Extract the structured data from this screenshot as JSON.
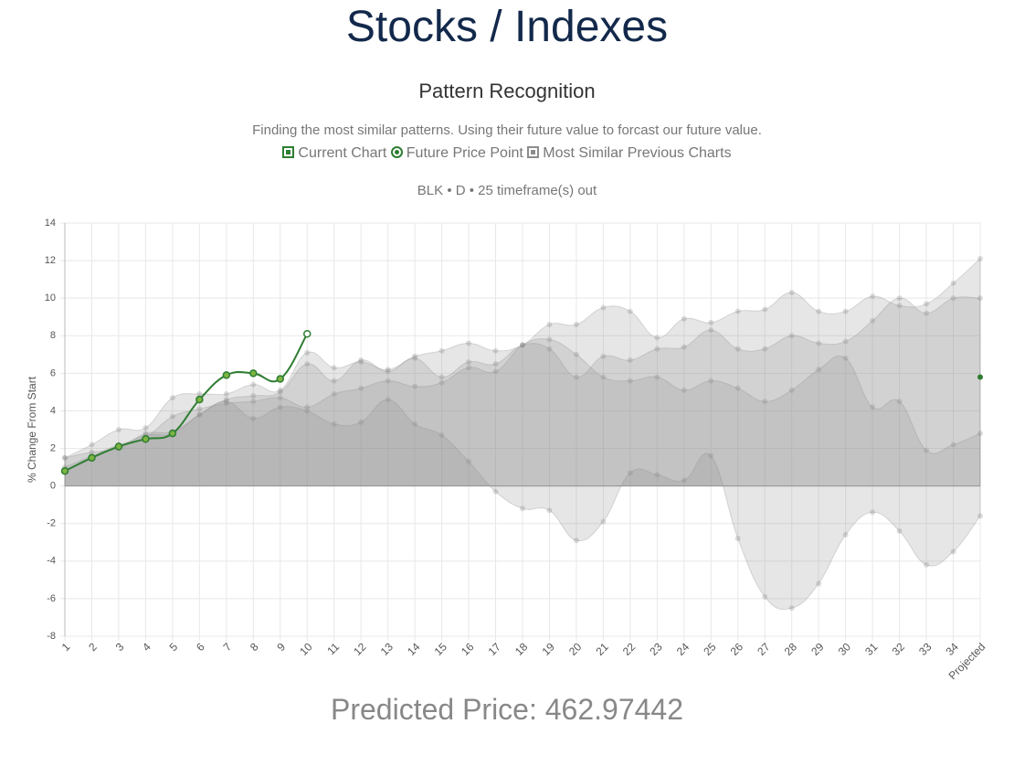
{
  "page": {
    "title": "Stocks / Indexes",
    "subtitle": "Pattern Recognition",
    "description": "Finding the most similar patterns. Using their future value to forcast our future value.",
    "caption": "BLK • D • 25 timeframe(s) out",
    "prediction": "Predicted Price: 462.97442"
  },
  "chart_data": {
    "type": "line",
    "y_label": "% Change From Start",
    "categories": [
      "1",
      "2",
      "3",
      "4",
      "5",
      "6",
      "7",
      "8",
      "9",
      "10",
      "11",
      "12",
      "13",
      "14",
      "15",
      "16",
      "17",
      "18",
      "19",
      "20",
      "21",
      "22",
      "23",
      "24",
      "25",
      "26",
      "27",
      "28",
      "29",
      "30",
      "31",
      "32",
      "33",
      "34",
      "Projected"
    ],
    "ylim": [
      -8,
      14
    ],
    "yticks": [
      -8,
      -6,
      -4,
      -2,
      0,
      2,
      4,
      6,
      8,
      10,
      12,
      14
    ],
    "grid": true,
    "series": [
      {
        "name": "Current Chart",
        "color": "#2e7d32",
        "values": [
          0.8,
          1.5,
          2.1,
          2.5,
          2.8,
          4.6,
          5.9,
          6.0,
          5.7,
          8.1,
          null,
          null,
          null,
          null,
          null,
          null,
          null,
          null,
          null,
          null,
          null,
          null,
          null,
          null,
          null,
          null,
          null,
          null,
          null,
          null,
          null,
          null,
          null,
          null,
          null
        ]
      },
      {
        "name": "Future Price Point",
        "color": "#2e7d32",
        "values": [
          null,
          null,
          null,
          null,
          null,
          null,
          null,
          null,
          null,
          null,
          null,
          null,
          null,
          null,
          null,
          null,
          null,
          null,
          null,
          null,
          null,
          null,
          null,
          null,
          null,
          null,
          null,
          null,
          null,
          null,
          null,
          null,
          null,
          null,
          5.8
        ]
      }
    ],
    "similar_charts": {
      "name": "Most Similar Previous Charts",
      "color": "#8c8c8c",
      "series": [
        {
          "values": [
            1.5,
            2.2,
            3.0,
            3.1,
            4.7,
            4.9,
            4.9,
            5.4,
            5.1,
            7.1,
            6.3,
            6.6,
            6.2,
            6.9,
            7.2,
            7.6,
            7.2,
            7.5,
            8.6,
            8.6,
            9.5,
            9.3,
            7.9,
            8.9,
            8.7,
            9.3,
            9.4,
            10.3,
            9.3,
            9.3,
            10.1,
            9.6,
            9.7,
            10.8,
            12.1
          ]
        },
        {
          "values": [
            1.5,
            1.8,
            2.0,
            2.8,
            2.9,
            3.8,
            4.6,
            4.8,
            5.0,
            6.5,
            5.6,
            6.7,
            6.1,
            6.8,
            5.8,
            6.6,
            6.5,
            7.5,
            7.3,
            5.8,
            6.9,
            6.7,
            7.3,
            7.4,
            8.3,
            7.3,
            7.3,
            8.0,
            7.6,
            7.7,
            8.8,
            10.0,
            9.2,
            10.0,
            10.0
          ]
        },
        {
          "values": [
            1.0,
            1.6,
            2.2,
            2.6,
            3.7,
            4.1,
            4.4,
            4.5,
            4.7,
            4.2,
            4.9,
            5.2,
            5.6,
            5.3,
            5.5,
            6.3,
            6.1,
            7.5,
            7.8,
            7.0,
            5.8,
            5.6,
            5.8,
            5.1,
            5.6,
            5.2,
            4.5,
            5.1,
            6.2,
            6.8,
            4.2,
            4.5,
            1.9,
            2.2,
            2.8
          ]
        },
        {
          "values": [
            0.8,
            1.5,
            2.1,
            2.7,
            2.8,
            3.8,
            4.5,
            3.6,
            4.2,
            4.0,
            3.3,
            3.4,
            4.6,
            3.3,
            2.7,
            1.3,
            -0.3,
            -1.2,
            -1.3,
            -2.9,
            -1.9,
            0.7,
            0.6,
            0.3,
            1.6,
            -2.8,
            -5.9,
            -6.5,
            -5.2,
            -2.6,
            -1.4,
            -2.4,
            -4.2,
            -3.5,
            -1.6
          ]
        }
      ]
    }
  }
}
